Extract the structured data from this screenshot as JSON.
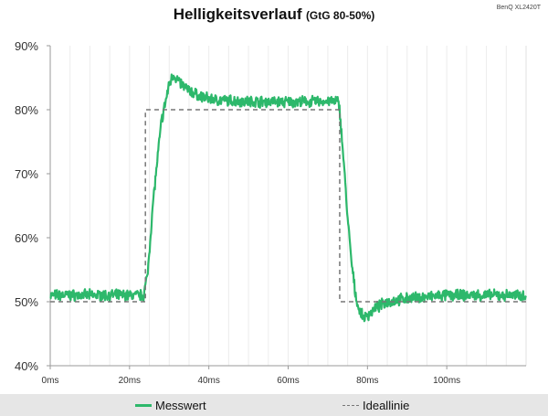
{
  "chart_data": {
    "type": "line",
    "title": "Helligkeitsverlauf",
    "subtitle": "(GtG 80-50%)",
    "corner_label": "BenQ XL2420T",
    "xlabel": "",
    "ylabel": "",
    "xlim": [
      0,
      120
    ],
    "ylim": [
      40,
      90
    ],
    "x_ticks": [
      0,
      20,
      40,
      60,
      80,
      100
    ],
    "x_tick_labels": [
      "0ms",
      "20ms",
      "40ms",
      "60ms",
      "80ms",
      "100ms"
    ],
    "y_ticks": [
      40,
      50,
      60,
      70,
      80,
      90
    ],
    "y_tick_labels": [
      "40%",
      "50%",
      "60%",
      "70%",
      "80%",
      "90%"
    ],
    "grid": "vertical minor",
    "legend_position": "bottom",
    "series": [
      {
        "name": "Messwert",
        "color": "#2db86b",
        "style": "solid-noisy",
        "x": [
          0,
          10,
          20,
          23.5,
          24.5,
          26,
          28,
          30,
          31,
          33,
          35,
          38,
          42,
          50,
          60,
          70,
          72.5,
          73,
          74,
          75,
          76,
          77,
          78,
          79,
          80,
          82,
          85,
          90,
          100,
          110,
          120
        ],
        "y": [
          51,
          51,
          51,
          51,
          54,
          66,
          78,
          84,
          85.5,
          84,
          83,
          82,
          81.5,
          81.3,
          81.2,
          81.3,
          81.3,
          80,
          72,
          63,
          56,
          51,
          48.5,
          47.5,
          47.8,
          49,
          50,
          50.5,
          51,
          51,
          51
        ]
      },
      {
        "name": "Ideallinie",
        "color": "#777777",
        "style": "dashed",
        "x": [
          0,
          24,
          24,
          73,
          73,
          120
        ],
        "y": [
          50,
          50,
          80,
          80,
          50,
          50
        ]
      }
    ]
  },
  "legend": {
    "items": [
      "Messwert",
      "Ideallinie"
    ]
  }
}
